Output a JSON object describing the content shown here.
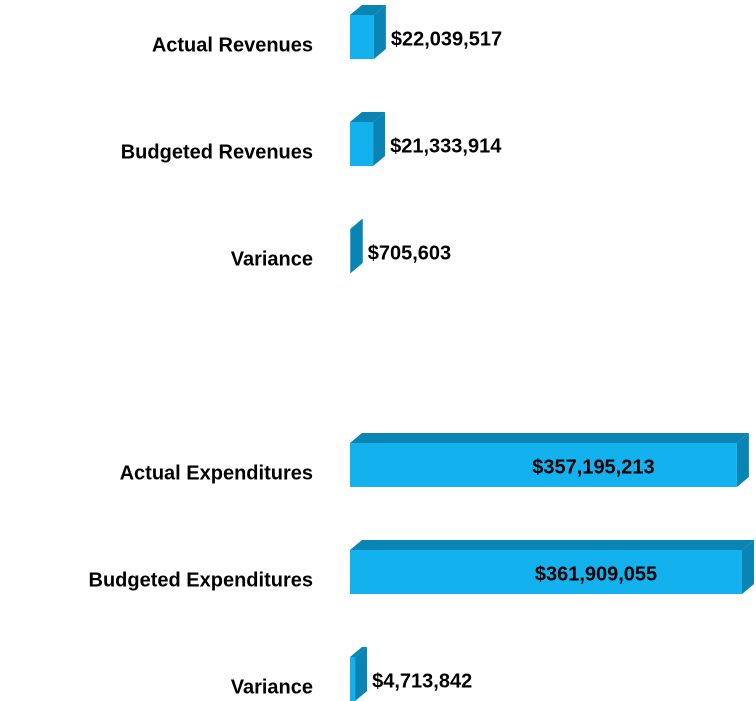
{
  "chart_data": [
    {
      "type": "bar",
      "orientation": "horizontal",
      "color": "#13b2ee",
      "categories": [
        "Actual Revenues",
        "Budgeted Revenues",
        "Variance"
      ],
      "values": [
        22039517,
        21333914,
        705603
      ],
      "value_labels": [
        "$22,039,517",
        "$21,333,914",
        "$705,603"
      ]
    },
    {
      "type": "bar",
      "orientation": "horizontal",
      "color": "#13b2ee",
      "categories": [
        "Actual Expenditures",
        "Budgeted Expenditures",
        "Variance"
      ],
      "values": [
        357195213,
        361909055,
        4713842
      ],
      "value_labels": [
        "$357,195,213",
        "$361,909,055",
        "$4,713,842"
      ]
    }
  ]
}
